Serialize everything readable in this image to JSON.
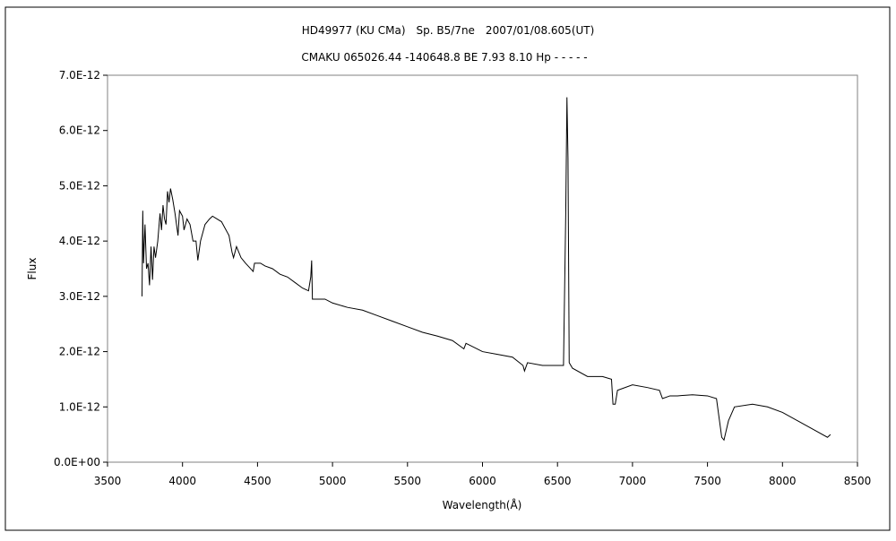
{
  "chart_data": {
    "type": "line",
    "title": "HD49977 (KU CMa)　Sp. B5/7ne　2007/01/08.605(UT)",
    "subtitle": "CMAKU 065026.44 -140648.8 BE 7.93 8.10 Hp - - - - -",
    "x_label": "Wavelength(Å)",
    "y_label": "Flux",
    "xlim": [
      3500,
      8500
    ],
    "xticks": [
      3500,
      4000,
      4500,
      5000,
      5500,
      6000,
      6500,
      7000,
      7500,
      8000,
      8500
    ],
    "ylim": [
      0,
      7e-12
    ],
    "yticks": [
      {
        "value": 0,
        "label": "0.0E+00"
      },
      {
        "value": 1e-12,
        "label": "1.0E-12"
      },
      {
        "value": 2e-12,
        "label": "2.0E-12"
      },
      {
        "value": 3e-12,
        "label": "3.0E-12"
      },
      {
        "value": 4e-12,
        "label": "4.0E-12"
      },
      {
        "value": 5e-12,
        "label": "5.0E-12"
      },
      {
        "value": 6e-12,
        "label": "6.0E-12"
      },
      {
        "value": 7e-12,
        "label": "7.0E-12"
      }
    ],
    "color": "#000000",
    "x": [
      3730,
      3735,
      3740,
      3750,
      3760,
      3770,
      3780,
      3790,
      3800,
      3810,
      3820,
      3835,
      3850,
      3860,
      3870,
      3880,
      3890,
      3900,
      3910,
      3920,
      3935,
      3950,
      3960,
      3970,
      3980,
      4000,
      4010,
      4030,
      4050,
      4070,
      4090,
      4102,
      4120,
      4150,
      4180,
      4200,
      4230,
      4260,
      4290,
      4310,
      4330,
      4340,
      4360,
      4390,
      4420,
      4471,
      4480,
      4520,
      4550,
      4600,
      4650,
      4700,
      4750,
      4800,
      4840,
      4855,
      4861,
      4866,
      4880,
      4950,
      5000,
      5100,
      5200,
      5300,
      5400,
      5500,
      5600,
      5700,
      5800,
      5876,
      5890,
      6000,
      6100,
      6200,
      6270,
      6280,
      6300,
      6400,
      6500,
      6540,
      6555,
      6563,
      6570,
      6578,
      6600,
      6700,
      6800,
      6860,
      6870,
      6885,
      6900,
      7000,
      7100,
      7180,
      7200,
      7250,
      7300,
      7400,
      7500,
      7560,
      7595,
      7610,
      7640,
      7680,
      7800,
      7900,
      8000,
      8100,
      8200,
      8300,
      8320
    ],
    "values": [
      3e-12,
      4.55e-12,
      3.6e-12,
      4.3e-12,
      3.5e-12,
      3.6e-12,
      3.2e-12,
      3.9e-12,
      3.3e-12,
      3.9e-12,
      3.7e-12,
      4e-12,
      4.5e-12,
      4.2e-12,
      4.65e-12,
      4.4e-12,
      4.3e-12,
      4.9e-12,
      4.7e-12,
      4.95e-12,
      4.75e-12,
      4.5e-12,
      4.3e-12,
      4.1e-12,
      4.55e-12,
      4.45e-12,
      4.2e-12,
      4.4e-12,
      4.3e-12,
      4e-12,
      4e-12,
      3.65e-12,
      4e-12,
      4.3e-12,
      4.4e-12,
      4.45e-12,
      4.4e-12,
      4.35e-12,
      4.2e-12,
      4.1e-12,
      3.8e-12,
      3.7e-12,
      3.9e-12,
      3.7e-12,
      3.6e-12,
      3.45e-12,
      3.6e-12,
      3.6e-12,
      3.55e-12,
      3.5e-12,
      3.4e-12,
      3.35e-12,
      3.25e-12,
      3.15e-12,
      3.1e-12,
      3.35e-12,
      3.65e-12,
      2.95e-12,
      2.95e-12,
      2.95e-12,
      2.88e-12,
      2.8e-12,
      2.75e-12,
      2.65e-12,
      2.55e-12,
      2.45e-12,
      2.35e-12,
      2.28e-12,
      2.2e-12,
      2.05e-12,
      2.15e-12,
      2e-12,
      1.95e-12,
      1.9e-12,
      1.75e-12,
      1.65e-12,
      1.8e-12,
      1.75e-12,
      1.75e-12,
      1.75e-12,
      4.5e-12,
      6.6e-12,
      5.5e-12,
      1.8e-12,
      1.7e-12,
      1.55e-12,
      1.55e-12,
      1.5e-12,
      1.05e-12,
      1.05e-12,
      1.3e-12,
      1.4e-12,
      1.35e-12,
      1.3e-12,
      1.15e-12,
      1.2e-12,
      1.2e-12,
      1.22e-12,
      1.2e-12,
      1.15e-12,
      4.5e-13,
      4e-13,
      7.5e-13,
      1e-12,
      1.05e-12,
      1e-12,
      9e-13,
      7.5e-13,
      6e-13,
      4.5e-13,
      5e-13
    ]
  }
}
